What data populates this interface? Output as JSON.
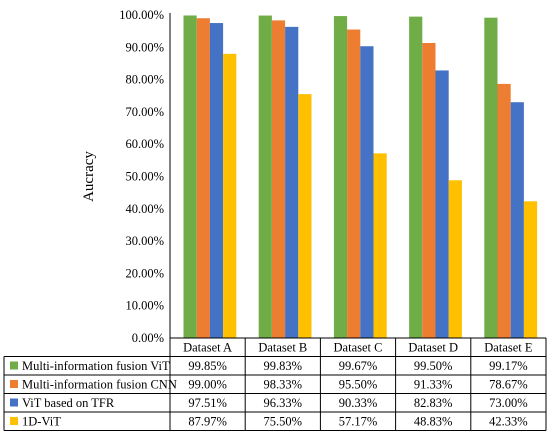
{
  "chart_data": {
    "type": "bar",
    "ylabel": "Aucracy",
    "ylim": [
      0,
      100
    ],
    "yticks": [
      "0.00%",
      "10.00%",
      "20.00%",
      "30.00%",
      "40.00%",
      "50.00%",
      "60.00%",
      "70.00%",
      "80.00%",
      "90.00%",
      "100.00%"
    ],
    "categories": [
      "Dataset A",
      "Dataset B",
      "Dataset C",
      "Dataset D",
      "Dataset E"
    ],
    "grid": false,
    "legend": "data-table-rows",
    "series": [
      {
        "name": "Multi-information fusion ViT",
        "color": "#70ad47",
        "values": [
          99.85,
          99.83,
          99.67,
          99.5,
          99.17
        ],
        "labels": [
          "99.85%",
          "99.83%",
          "99.67%",
          "99.50%",
          "99.17%"
        ]
      },
      {
        "name": "Multi-information fusion CNN",
        "color": "#ed7d31",
        "values": [
          99.0,
          98.33,
          95.5,
          91.33,
          78.67
        ],
        "labels": [
          "99.00%",
          "98.33%",
          "95.50%",
          "91.33%",
          "78.67%"
        ]
      },
      {
        "name": "ViT based on TFR",
        "color": "#4472c4",
        "values": [
          97.51,
          96.33,
          90.33,
          82.83,
          73.0
        ],
        "labels": [
          "97.51%",
          "96.33%",
          "90.33%",
          "82.83%",
          "73.00%"
        ]
      },
      {
        "name": "1D-ViT",
        "color": "#ffc000",
        "values": [
          87.97,
          75.5,
          57.17,
          48.83,
          42.33
        ],
        "labels": [
          "87.97%",
          "75.50%",
          "57.17%",
          "48.83%",
          "42.33%"
        ]
      }
    ]
  }
}
